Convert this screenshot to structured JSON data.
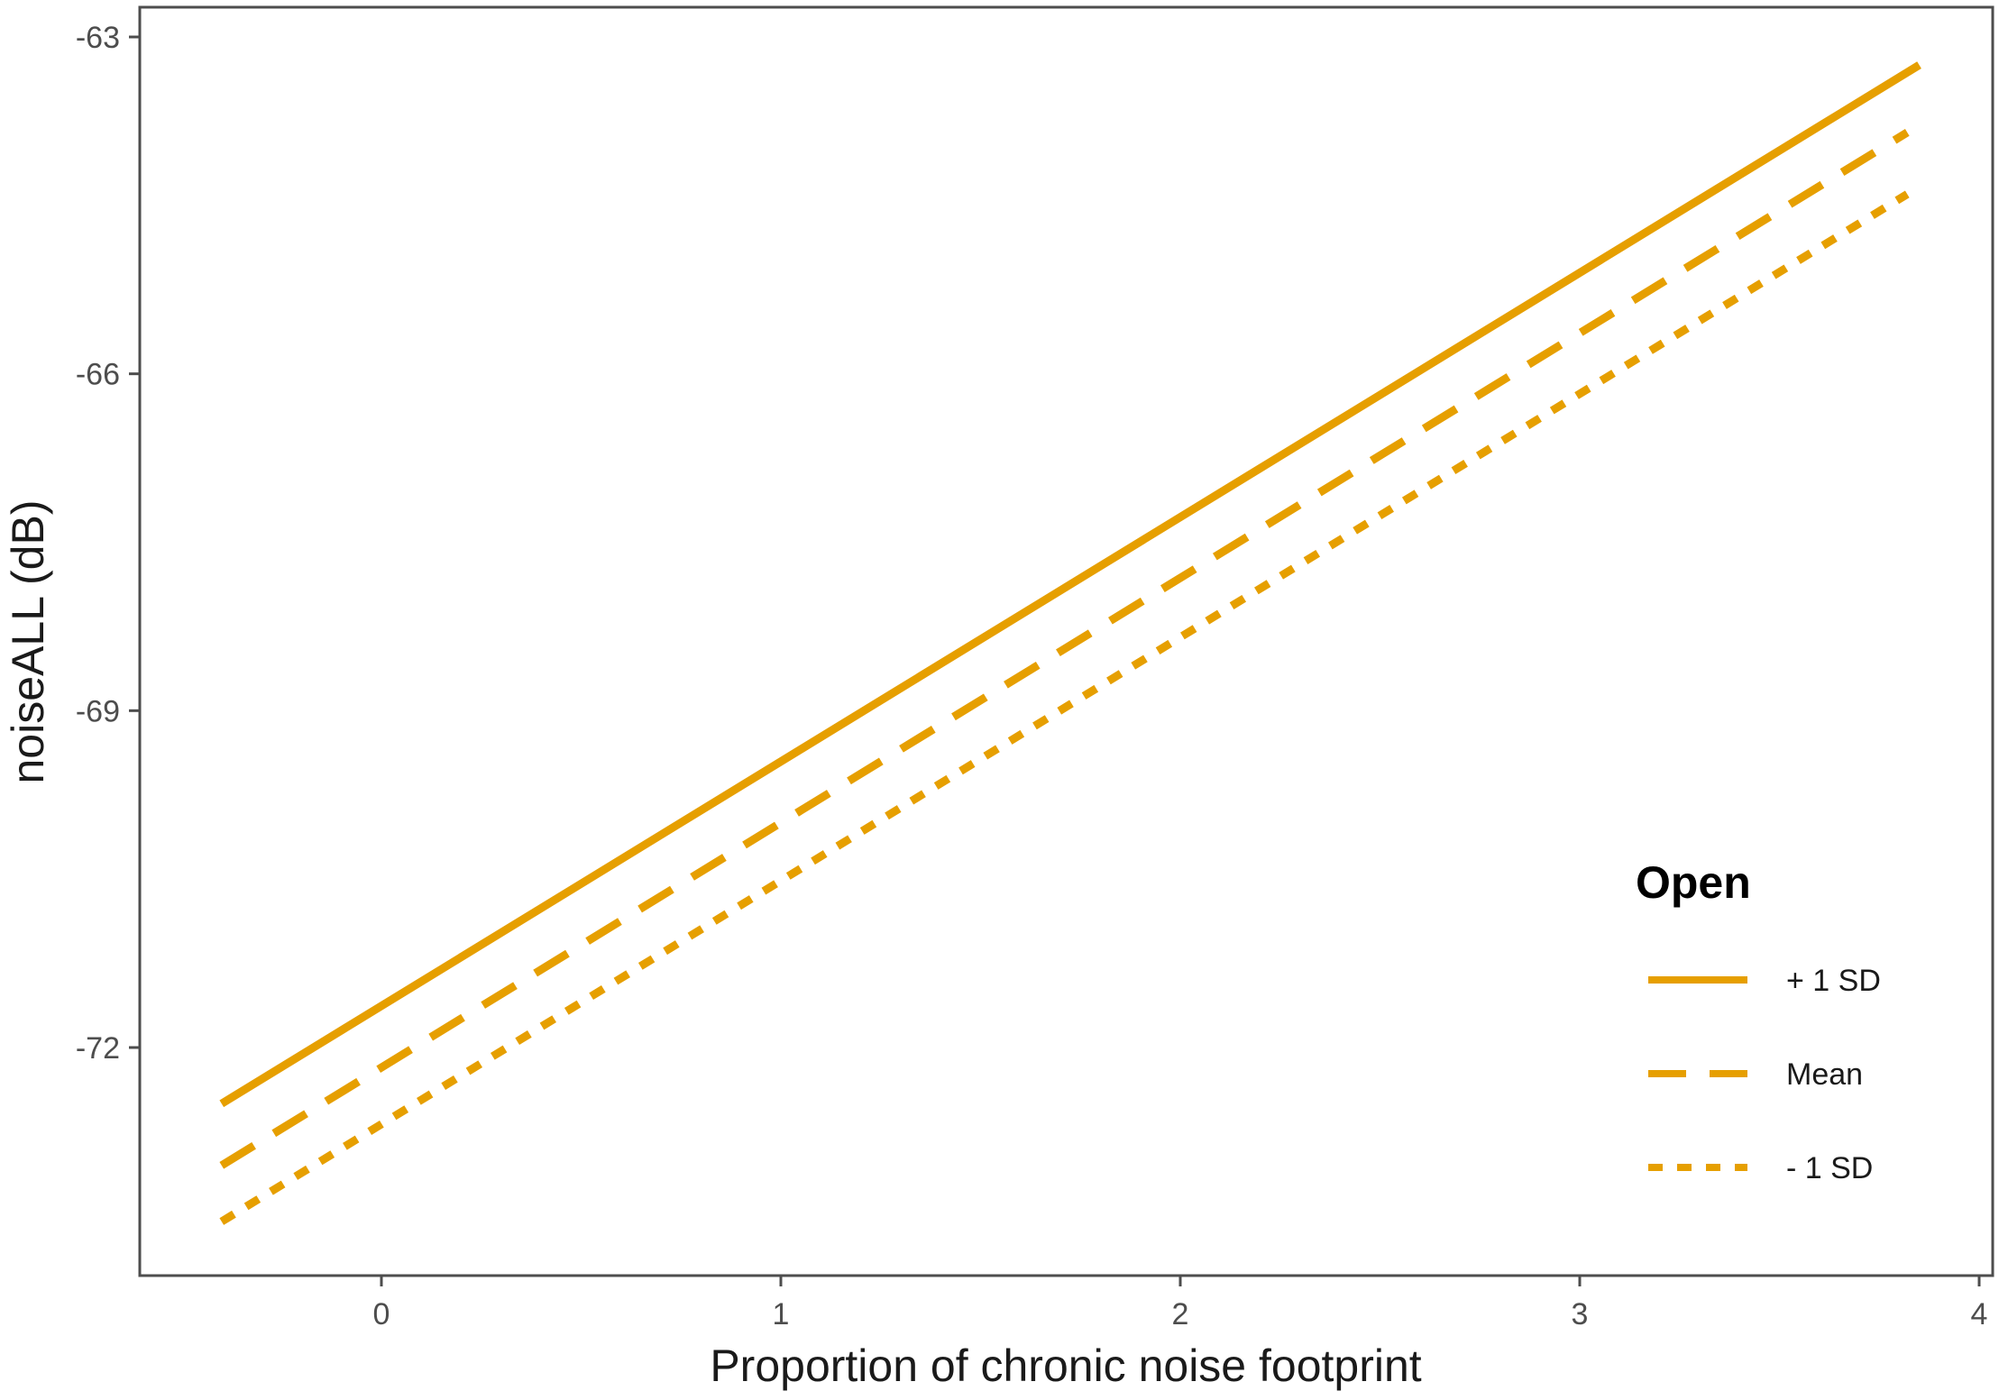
{
  "chart_data": {
    "type": "line",
    "title": "",
    "xlabel": "Proportion of chronic noise footprint",
    "ylabel": "noiseALL (dB)",
    "xlim": [
      -0.6,
      4.0
    ],
    "ylim": [
      -74.95,
      -62.75
    ],
    "x_ticks": [
      0,
      1,
      2,
      3,
      4
    ],
    "x_tick_labels": [
      "0",
      "1",
      "2",
      "3",
      "4"
    ],
    "y_ticks": [
      -72,
      -69,
      -66,
      -63
    ],
    "y_tick_labels": [
      "-72",
      "-69",
      "-66",
      "-63"
    ],
    "grid": false,
    "legend": {
      "title": "Open",
      "position": "right"
    },
    "line_color": "#E69F00",
    "series": [
      {
        "name": "+ 1 SD",
        "linestyle": "solid",
        "x": [
          -0.4,
          3.85
        ],
        "y": [
          -72.5,
          -63.25
        ]
      },
      {
        "name": "Mean",
        "linestyle": "dashed",
        "x": [
          -0.4,
          3.82
        ],
        "y": [
          -73.05,
          -63.85
        ]
      },
      {
        "name": "- 1 SD",
        "linestyle": "dotted",
        "x": [
          -0.4,
          3.82
        ],
        "y": [
          -73.55,
          -64.4
        ]
      }
    ]
  }
}
